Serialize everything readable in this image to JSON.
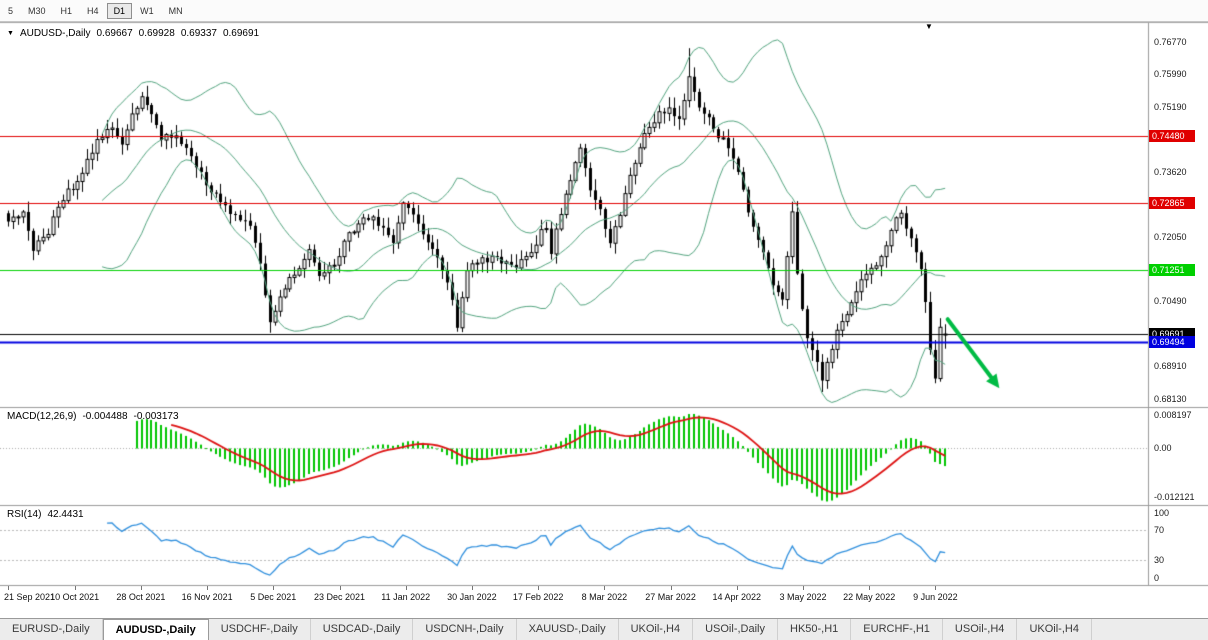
{
  "toolbar": {
    "buttons": [
      "5",
      "M30",
      "H1",
      "H4",
      "D1",
      "W1",
      "MN"
    ],
    "active": "D1"
  },
  "icons": {
    "triangle_down": "▼"
  },
  "chart": {
    "title": {
      "symbol_period": "AUDUSD-,Daily",
      "open": "0.69667",
      "high": "0.69928",
      "low": "0.69337",
      "close": "0.69691"
    },
    "price_axis_labels": [
      "0.76770",
      "0.75990",
      "0.75190",
      "0.74410",
      "0.73620",
      "0.72830",
      "0.72050",
      "0.71260",
      "0.70490",
      "0.69700",
      "0.68910",
      "0.68130"
    ],
    "levels": [
      {
        "value": "0.74480",
        "color": "#e00000",
        "width": 1
      },
      {
        "value": "0.72865",
        "color": "#e00000",
        "width": 1
      },
      {
        "value": "0.71251",
        "color": "#00d000",
        "width": 1
      },
      {
        "value": "0.69691",
        "color": "#000000",
        "width": 1
      },
      {
        "value": "0.69494",
        "color": "#0000e0",
        "width": 2
      }
    ]
  },
  "chart_data": {
    "type": "candlestick",
    "symbol": "AUDUSD-",
    "timeframe": "Daily",
    "bars": 191,
    "price_range": [
      0.6795,
      0.7705
    ],
    "price_path_anchors": [
      [
        0,
        0.7235
      ],
      [
        3,
        0.7268
      ],
      [
        5,
        0.7172
      ],
      [
        8,
        0.7215
      ],
      [
        11,
        0.7298
      ],
      [
        14,
        0.7335
      ],
      [
        18,
        0.7442
      ],
      [
        21,
        0.7465
      ],
      [
        23,
        0.743
      ],
      [
        25,
        0.7498
      ],
      [
        27,
        0.7548
      ],
      [
        29,
        0.7502
      ],
      [
        31,
        0.7448
      ],
      [
        34,
        0.744
      ],
      [
        37,
        0.7398
      ],
      [
        40,
        0.7332
      ],
      [
        43,
        0.7285
      ],
      [
        46,
        0.7248
      ],
      [
        49,
        0.7228
      ],
      [
        51,
        0.7135
      ],
      [
        53,
        0.7005
      ],
      [
        55,
        0.7052
      ],
      [
        58,
        0.7118
      ],
      [
        61,
        0.7172
      ],
      [
        63,
        0.7108
      ],
      [
        66,
        0.714
      ],
      [
        69,
        0.7208
      ],
      [
        72,
        0.7248
      ],
      [
        74,
        0.7262
      ],
      [
        76,
        0.7218
      ],
      [
        78,
        0.7188
      ],
      [
        80,
        0.7292
      ],
      [
        82,
        0.7252
      ],
      [
        85,
        0.7188
      ],
      [
        88,
        0.7128
      ],
      [
        90,
        0.7045
      ],
      [
        91,
        0.6992
      ],
      [
        93,
        0.7132
      ],
      [
        96,
        0.7148
      ],
      [
        99,
        0.7155
      ],
      [
        102,
        0.7132
      ],
      [
        105,
        0.7152
      ],
      [
        108,
        0.7212
      ],
      [
        109,
        0.7232
      ],
      [
        110,
        0.7165
      ],
      [
        112,
        0.7265
      ],
      [
        114,
        0.7332
      ],
      [
        116,
        0.7425
      ],
      [
        118,
        0.732
      ],
      [
        120,
        0.7265
      ],
      [
        122,
        0.719
      ],
      [
        124,
        0.7265
      ],
      [
        126,
        0.7362
      ],
      [
        129,
        0.745
      ],
      [
        132,
        0.7498
      ],
      [
        134,
        0.7515
      ],
      [
        136,
        0.749
      ],
      [
        138,
        0.7585
      ],
      [
        140,
        0.7525
      ],
      [
        143,
        0.7468
      ],
      [
        146,
        0.742
      ],
      [
        148,
        0.737
      ],
      [
        150,
        0.7255
      ],
      [
        152,
        0.719
      ],
      [
        154,
        0.7128
      ],
      [
        156,
        0.7065
      ],
      [
        157,
        0.705
      ],
      [
        159,
        0.7255
      ],
      [
        160,
        0.7115
      ],
      [
        162,
        0.695
      ],
      [
        164,
        0.6905
      ],
      [
        165,
        0.6865
      ],
      [
        167,
        0.694
      ],
      [
        169,
        0.7005
      ],
      [
        171,
        0.7045
      ],
      [
        173,
        0.7098
      ],
      [
        175,
        0.7125
      ],
      [
        177,
        0.7155
      ],
      [
        179,
        0.7225
      ],
      [
        181,
        0.7265
      ],
      [
        183,
        0.7198
      ],
      [
        185,
        0.713
      ],
      [
        186,
        0.7045
      ],
      [
        187,
        0.693
      ],
      [
        188,
        0.6868
      ],
      [
        189,
        0.6995
      ],
      [
        190,
        0.69691
      ]
    ],
    "wick_extremes": [
      [
        27,
        "high",
        0.7555
      ],
      [
        138,
        "high",
        0.7661
      ],
      [
        165,
        "low",
        0.6829
      ],
      [
        188,
        "low",
        0.685
      ]
    ],
    "x_tick_labels": [
      "21 Sep 2021",
      "10 Oct 2021",
      "28 Oct 2021",
      "16 Nov 2021",
      "5 Dec 2021",
      "23 Dec 2021",
      "11 Jan 2022",
      "30 Jan 2022",
      "17 Feb 2022",
      "8 Mar 2022",
      "27 Mar 2022",
      "14 Apr 2022",
      "3 May 2022",
      "22 May 2022",
      "9 Jun 2022"
    ],
    "indicators": {
      "bollinger": {
        "period": 20,
        "deviation": 2
      },
      "macd": {
        "label": "MACD(12,26,9)",
        "main_text": "-0.004488",
        "signal_text": "-0.003173",
        "axis_labels": [
          "0.008197",
          "0.00",
          "-0.012121"
        ],
        "ylim": [
          -0.0125,
          0.009
        ]
      },
      "rsi": {
        "label": "RSI(14)",
        "value_text": "42.4431",
        "axis_labels": [
          "100",
          "70",
          "30",
          "0"
        ],
        "levels": [
          70,
          30
        ],
        "ylim": [
          0,
          100
        ]
      }
    },
    "objects": [
      {
        "type": "arrow",
        "color": "#00bb44",
        "from": [
          190.5,
          0.7005
        ],
        "to": [
          201,
          0.6838
        ]
      }
    ]
  },
  "tabs": {
    "items": [
      "EURUSD-,Daily",
      "AUDUSD-,Daily",
      "USDCHF-,Daily",
      "USDCAD-,Daily",
      "USDCNH-,Daily",
      "XAUUSD-,Daily",
      "UKOil-,H4",
      "USOil-,Daily",
      "HK50-,H1",
      "EURCHF-,H1",
      "USOil-,H4",
      "UKOil-,H4"
    ],
    "active_index": 1
  },
  "colors": {
    "candle_up_fill": "#ffffff",
    "candle_down_fill": "#000000",
    "candle_border": "#000000",
    "bollinger": "#52a37e",
    "macd_hist": "#00c400",
    "macd_signal": "#dd1111",
    "macd_zero": "#aaaaaa",
    "rsi_line": "#2f8fdd",
    "rsi_levels": "#b8b8b8",
    "pane_border": "#9a9a9a"
  }
}
